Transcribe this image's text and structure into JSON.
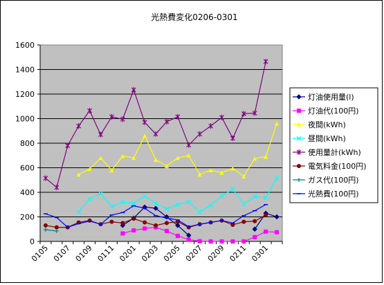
{
  "chart_data": {
    "type": "line",
    "title": "光熱費変化0206-0301",
    "xlabel": "",
    "ylabel": "",
    "ylim": [
      0,
      1600
    ],
    "yticks": [
      "0",
      "200",
      "400",
      "600",
      "800",
      "1000",
      "1200",
      "1400",
      "1600"
    ],
    "x_tick_labels": [
      "0105",
      "0107",
      "0109",
      "0111",
      "0201",
      "0203",
      "0205",
      "0207",
      "0209",
      "0211",
      "0301"
    ],
    "categories": [
      "0105",
      "0106",
      "0107",
      "0108",
      "0109",
      "0110",
      "0111",
      "0112",
      "0201",
      "0202",
      "0203",
      "0204",
      "0205",
      "0206",
      "0207",
      "0208",
      "0209",
      "0210",
      "0211",
      "0212",
      "0301",
      "0302"
    ],
    "grid": true,
    "legend_position": "right",
    "colors": {
      "plot_bg": "#c0c0c0",
      "page_bg": "#ffffff",
      "gridline": "#000000"
    },
    "series": [
      {
        "name": "灯油使用量(l)",
        "color": "#000080",
        "marker": "diamond",
        "values": [
          null,
          null,
          null,
          null,
          null,
          null,
          null,
          130,
          190,
          280,
          270,
          200,
          130,
          50,
          null,
          null,
          null,
          null,
          null,
          100,
          230,
          200
        ]
      },
      {
        "name": "灯油代(100円)",
        "color": "#ff00ff",
        "marker": "square",
        "values": [
          null,
          null,
          null,
          null,
          null,
          null,
          null,
          65,
          90,
          105,
          115,
          85,
          45,
          15,
          2,
          0,
          0,
          0,
          0,
          35,
          80,
          75
        ]
      },
      {
        "name": "夜間(kWh)",
        "color": "#ffff00",
        "marker": "triangle",
        "values": [
          null,
          null,
          null,
          545,
          590,
          680,
          580,
          695,
          680,
          860,
          665,
          615,
          680,
          700,
          545,
          580,
          560,
          595,
          530,
          675,
          690,
          960
        ]
      },
      {
        "name": "昼間(kWh)",
        "color": "#00ffff",
        "marker": "x",
        "values": [
          null,
          null,
          null,
          240,
          345,
          390,
          285,
          320,
          310,
          370,
          310,
          265,
          300,
          320,
          240,
          295,
          370,
          425,
          305,
          365,
          355,
          515
        ]
      },
      {
        "name": "使用量計(kWh)",
        "color": "#800080",
        "marker": "star",
        "values": [
          515,
          440,
          780,
          940,
          1065,
          870,
          1015,
          995,
          1235,
          970,
          875,
          975,
          1015,
          785,
          875,
          940,
          1010,
          840,
          1040,
          1045,
          1465,
          null
        ]
      },
      {
        "name": "電気料金(100円)",
        "color": "#800000",
        "marker": "circle",
        "values": [
          130,
          115,
          115,
          155,
          170,
          140,
          160,
          150,
          185,
          155,
          130,
          150,
          160,
          115,
          140,
          155,
          170,
          135,
          160,
          165,
          215,
          null
        ]
      },
      {
        "name": "ガス代(100円)",
        "color": "#008080",
        "marker": "plus",
        "values": [
          95,
          85,
          null,
          null,
          null,
          null,
          null,
          null,
          null,
          null,
          null,
          null,
          null,
          null,
          null,
          null,
          null,
          null,
          null,
          null,
          null,
          null
        ]
      },
      {
        "name": "光熱費(100円)",
        "color": "#0000ff",
        "marker": "dash",
        "values": [
          225,
          195,
          115,
          145,
          165,
          140,
          215,
          235,
          290,
          270,
          210,
          190,
          175,
          120,
          140,
          155,
          170,
          150,
          210,
          250,
          300,
          null
        ]
      }
    ]
  }
}
